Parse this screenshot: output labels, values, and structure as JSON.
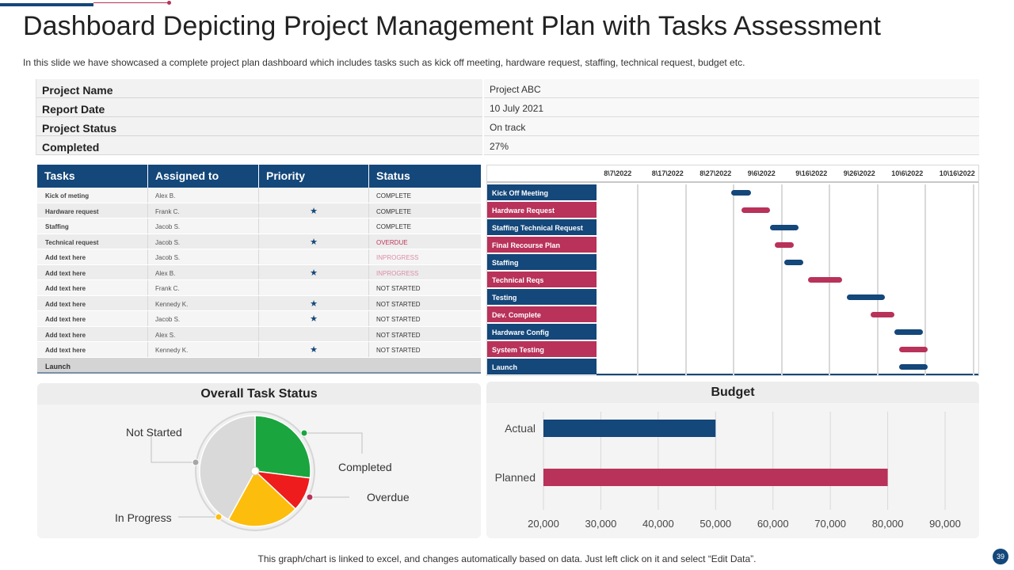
{
  "header": {
    "title": "Dashboard Depicting Project Management Plan with Tasks Assessment",
    "subtitle": "In this slide we have showcased a complete project plan dashboard which includes tasks such as kick off meeting, hardware request, staffing, technical request, budget etc."
  },
  "info": [
    {
      "label": "Project Name",
      "value": "Project ABC"
    },
    {
      "label": "Report Date",
      "value": "10 July 2021"
    },
    {
      "label": "Project Status",
      "value": "On track"
    },
    {
      "label": "Completed",
      "value": "27%"
    }
  ],
  "tasks": {
    "headers": [
      "Tasks",
      "Assigned to",
      "Priority",
      "Status"
    ],
    "rows": [
      {
        "task": "Kick of meting",
        "assigned": "Alex B.",
        "priority": false,
        "status": "COMPLETE",
        "kind": "normal"
      },
      {
        "task": "Hardware request",
        "assigned": "Frank C.",
        "priority": true,
        "status": "COMPLETE",
        "kind": "normal"
      },
      {
        "task": "Staffing",
        "assigned": "Jacob S.",
        "priority": false,
        "status": "COMPLETE",
        "kind": "normal"
      },
      {
        "task": "Technical request",
        "assigned": "Jacob S.",
        "priority": true,
        "status": "OVERDUE",
        "kind": "overdue"
      },
      {
        "task": "Add text here",
        "assigned": "Jacob S.",
        "priority": false,
        "status": "INPROGRESS",
        "kind": "inprogress"
      },
      {
        "task": "Add text here",
        "assigned": "Alex B.",
        "priority": true,
        "status": "INPROGRESS",
        "kind": "inprogress"
      },
      {
        "task": "Add text here",
        "assigned": "Frank C.",
        "priority": false,
        "status": "NOT STARTED",
        "kind": "normal"
      },
      {
        "task": "Add text here",
        "assigned": "Kennedy K.",
        "priority": true,
        "status": "NOT STARTED",
        "kind": "normal"
      },
      {
        "task": "Add text here",
        "assigned": "Jacob S.",
        "priority": true,
        "status": "NOT STARTED",
        "kind": "normal"
      },
      {
        "task": "Add text here",
        "assigned": "Alex S.",
        "priority": false,
        "status": "NOT STARTED",
        "kind": "normal"
      },
      {
        "task": "Add text here",
        "assigned": "Kennedy K.",
        "priority": true,
        "status": "NOT STARTED",
        "kind": "normal"
      }
    ],
    "footer": "Launch",
    "star_icon": "star-icon"
  },
  "gantt": {
    "dates": [
      "8\\7\\2022",
      "8\\17\\2022",
      "8\\27\\2022",
      "9\\6\\2022",
      "9\\16\\2022",
      "9\\26\\2022",
      "10\\6\\2022",
      "10\\16\\2022"
    ],
    "tasks": [
      {
        "label": "Kick Off Meeting",
        "color": "blue",
        "start": "2022-09-04",
        "end": "2022-09-08"
      },
      {
        "label": "Hardware Request",
        "color": "red",
        "start": "2022-09-06",
        "end": "2022-09-12"
      },
      {
        "label": "Staffing Technical Request",
        "color": "blue",
        "start": "2022-09-12",
        "end": "2022-09-18"
      },
      {
        "label": "Final Recourse Plan",
        "color": "red",
        "start": "2022-09-13",
        "end": "2022-09-17"
      },
      {
        "label": "Staffing",
        "color": "blue",
        "start": "2022-09-15",
        "end": "2022-09-19"
      },
      {
        "label": "Technical Reqs",
        "color": "red",
        "start": "2022-09-20",
        "end": "2022-09-27"
      },
      {
        "label": "Testing",
        "color": "blue",
        "start": "2022-09-28",
        "end": "2022-10-06"
      },
      {
        "label": "Dev. Complete",
        "color": "red",
        "start": "2022-10-03",
        "end": "2022-10-08"
      },
      {
        "label": "Hardware Config",
        "color": "blue",
        "start": "2022-10-08",
        "end": "2022-10-14"
      },
      {
        "label": "System Testing",
        "color": "red",
        "start": "2022-10-09",
        "end": "2022-10-15"
      },
      {
        "label": "Launch",
        "color": "blue",
        "start": "2022-10-09",
        "end": "2022-10-15"
      }
    ]
  },
  "task_status": {
    "title": "Overall Task Status",
    "labels": {
      "not_started": "Not Started",
      "completed": "Completed",
      "overdue": "Overdue",
      "in_progress": "In Progress"
    }
  },
  "budget": {
    "title": "Budget"
  },
  "chart_data": [
    {
      "type": "pie",
      "title": "Overall Task Status",
      "slices": [
        {
          "label": "Completed",
          "value": 27,
          "color": "#1aa53e"
        },
        {
          "label": "Overdue",
          "value": 10,
          "color": "#ee1c1c"
        },
        {
          "label": "In Progress",
          "value": 21,
          "color": "#fdbd0d"
        },
        {
          "label": "Not Started",
          "value": 42,
          "color": "#d9d9d9"
        }
      ]
    },
    {
      "type": "bar",
      "orientation": "horizontal",
      "title": "Budget",
      "categories": [
        "Actual",
        "Planned"
      ],
      "values": [
        50000,
        80000
      ],
      "colors": [
        "#14477a",
        "#b8325a"
      ],
      "xlim": [
        20000,
        90000
      ],
      "xticks": [
        "20,000",
        "30,000",
        "40,000",
        "50,000",
        "60,000",
        "70,000",
        "80,000",
        "90,000"
      ],
      "grid": true
    }
  ],
  "footer": {
    "note": "This graph/chart is linked to excel,  and changes automatically based on data. Just left click on it and select “Edit Data”.",
    "page": "39"
  }
}
